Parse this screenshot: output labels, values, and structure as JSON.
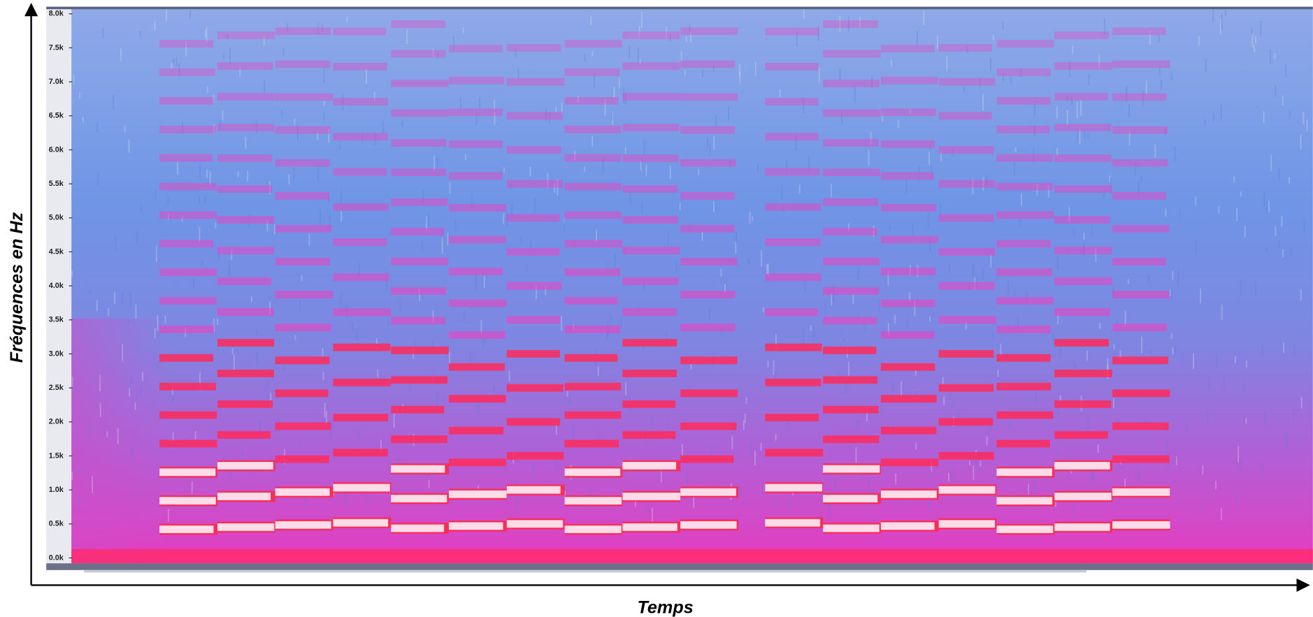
{
  "chart_data": {
    "type": "spectrogram",
    "y_label": "Fréquences en Hz",
    "x_label": "Temps",
    "ylim": [
      -0.08,
      8.08
    ],
    "yticks": [
      {
        "value": 0,
        "label": "0.0k"
      },
      {
        "value": 0.5,
        "label": "0.5k"
      },
      {
        "value": 1,
        "label": "1.0k"
      },
      {
        "value": 1.5,
        "label": "1.5k"
      },
      {
        "value": 2,
        "label": "2.0k"
      },
      {
        "value": 2.5,
        "label": "2.5k"
      },
      {
        "value": 3,
        "label": "3.0k"
      },
      {
        "value": 3.5,
        "label": "3.5k"
      },
      {
        "value": 4,
        "label": "4.0k"
      },
      {
        "value": 4.5,
        "label": "4.5k"
      },
      {
        "value": 5,
        "label": "5.0k"
      },
      {
        "value": 5.5,
        "label": "5.5k"
      },
      {
        "value": 6,
        "label": "6.0k"
      },
      {
        "value": 6.5,
        "label": "6.5k"
      },
      {
        "value": 7,
        "label": "7.0k"
      },
      {
        "value": 7.5,
        "label": "7.5k"
      },
      {
        "value": 8,
        "label": "8.0k"
      }
    ]
  }
}
